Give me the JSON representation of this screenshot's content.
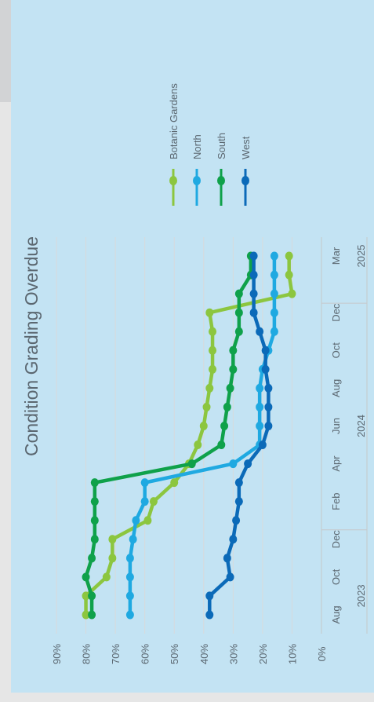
{
  "chart_data": {
    "type": "line",
    "title": "Condition Grading Overdue",
    "orientation": "rotated-90",
    "y_ticks": [
      "0%",
      "10%",
      "20%",
      "30%",
      "40%",
      "50%",
      "60%",
      "70%",
      "80%",
      "90%"
    ],
    "ylim": [
      0,
      90
    ],
    "x_ticks": [
      "Aug",
      "Oct",
      "Dec",
      "Feb",
      "Apr",
      "Jun",
      "Aug",
      "Oct",
      "Dec",
      "Mar"
    ],
    "x_tick_pos": [
      0,
      2,
      4,
      6,
      8,
      10,
      12,
      14,
      16,
      19
    ],
    "year_labels": [
      {
        "label": "2023",
        "pos": 1
      },
      {
        "label": "2024",
        "pos": 10
      },
      {
        "label": "2025",
        "pos": 19
      }
    ],
    "year_dividers": [
      4.5,
      16.5
    ],
    "xlim": [
      -1,
      20
    ],
    "x": [
      0,
      1,
      2,
      3,
      4,
      5,
      6,
      7,
      8,
      9,
      10,
      11,
      12,
      13,
      14,
      15,
      16,
      17,
      18,
      19
    ],
    "series": [
      {
        "name": "Botanic Gardens",
        "color": "#8cc63f",
        "values": [
          80,
          80,
          73,
          71,
          71,
          59,
          57,
          50,
          45,
          42,
          40,
          39,
          38,
          37,
          37,
          37,
          38,
          10,
          11,
          11
        ]
      },
      {
        "name": "North",
        "color": "#1fa9e1",
        "values": [
          65,
          65,
          65,
          65,
          64,
          63,
          60,
          60,
          30,
          21,
          21,
          21,
          21,
          20,
          18,
          16,
          16,
          16,
          16,
          16
        ]
      },
      {
        "name": "South",
        "color": "#0fa14a",
        "values": [
          78,
          78,
          80,
          78,
          77,
          77,
          77,
          77,
          44,
          34,
          33,
          32,
          31,
          30,
          30,
          28,
          28,
          28,
          24,
          24
        ]
      },
      {
        "name": "West",
        "color": "#0b6ab8",
        "values": [
          38,
          38,
          31,
          32,
          30,
          29,
          28,
          28,
          25,
          20,
          18,
          18,
          18,
          19,
          19,
          21,
          23,
          23,
          23,
          23
        ]
      }
    ],
    "legend": {
      "placement": "top-right"
    },
    "grid": true
  }
}
